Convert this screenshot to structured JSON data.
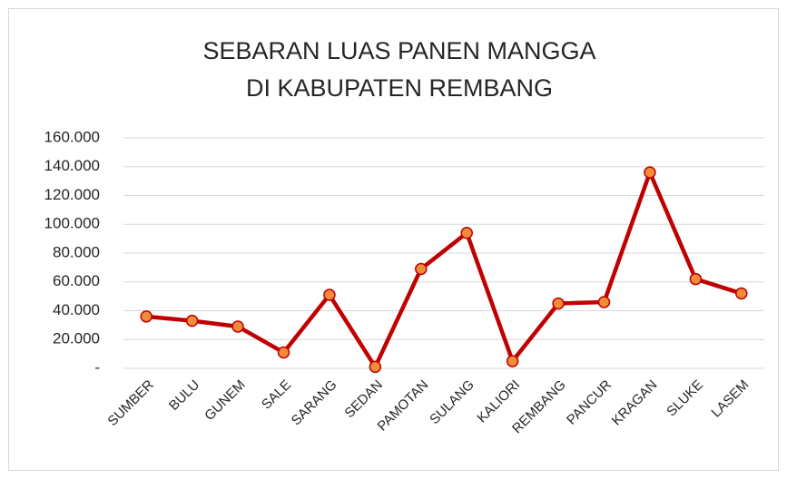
{
  "chart_data": {
    "type": "line",
    "title": [
      "SEBARAN LUAS PANEN MANGGA",
      "DI KABUPATEN REMBANG"
    ],
    "categories": [
      "SUMBER",
      "BULU",
      "GUNEM",
      "SALE",
      "SARANG",
      "SEDAN",
      "PAMOTAN",
      "SULANG",
      "KALIORI",
      "REMBANG",
      "PANCUR",
      "KRAGAN",
      "SLUKE",
      "LASEM"
    ],
    "series": [
      {
        "color": "#c00000",
        "marker_color": "#f08c3a",
        "values": [
          36000,
          33000,
          29000,
          11000,
          51000,
          1000,
          69000,
          94000,
          5000,
          45000,
          46000,
          136000,
          62000,
          52000
        ]
      }
    ],
    "ylim": [
      0,
      160000
    ],
    "yticks": [
      {
        "value": 0,
        "label": "-"
      },
      {
        "value": 20000,
        "label": "20.000"
      },
      {
        "value": 40000,
        "label": "40.000"
      },
      {
        "value": 60000,
        "label": "60.000"
      },
      {
        "value": 80000,
        "label": "80.000"
      },
      {
        "value": 100000,
        "label": "100.000"
      },
      {
        "value": 120000,
        "label": "120.000"
      },
      {
        "value": 140000,
        "label": "140.000"
      },
      {
        "value": 160000,
        "label": "160.000"
      }
    ],
    "grid": true
  }
}
